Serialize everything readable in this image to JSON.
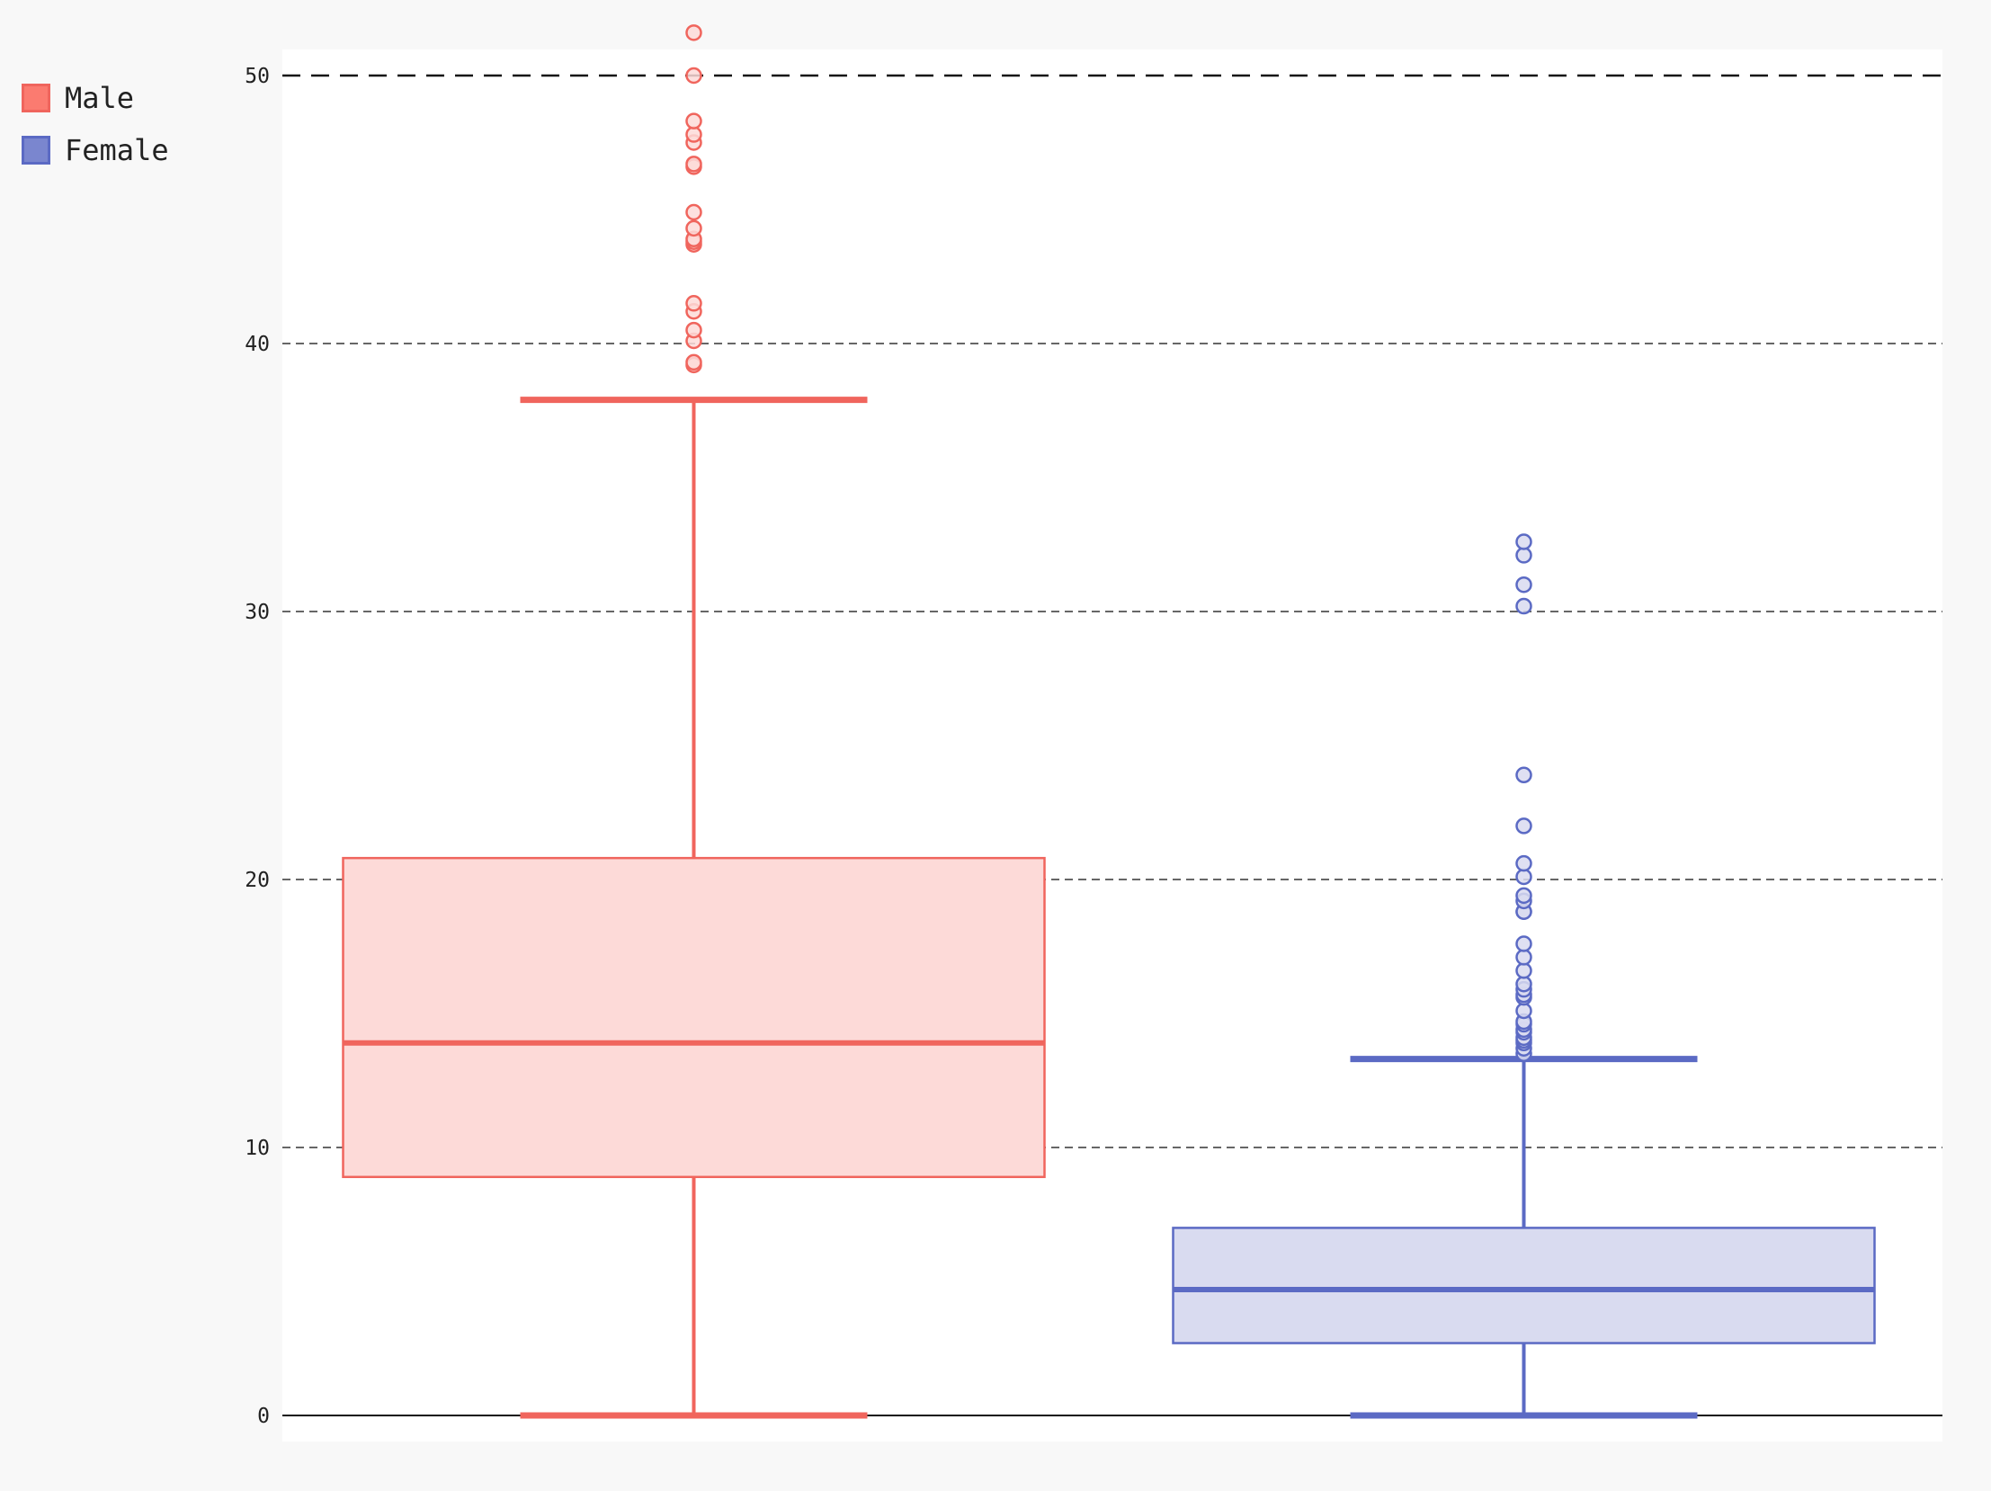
{
  "chart_data": {
    "type": "box",
    "title": "",
    "xlabel": "",
    "ylabel": "",
    "ylim": [
      -1,
      51.5
    ],
    "yticks": [
      0,
      10,
      20,
      30,
      40,
      50
    ],
    "reference_line": 50,
    "grid": true,
    "legend_position": "top-left",
    "series": [
      {
        "name": "Male",
        "color": "#f0655d",
        "fill": "#fddad8",
        "whisker_low": 0,
        "q1": 8.9,
        "median": 13.9,
        "q3": 20.8,
        "whisker_high": 37.9,
        "outliers": [
          39.2,
          39.3,
          40.1,
          40.5,
          41.2,
          41.5,
          43.7,
          43.8,
          43.9,
          44.3,
          44.9,
          46.6,
          46.7,
          47.5,
          47.8,
          48.3,
          50.0,
          51.6
        ]
      },
      {
        "name": "Female",
        "color": "#5b6ac4",
        "fill": "#d9dbf0",
        "whisker_low": 0,
        "q1": 2.7,
        "median": 4.7,
        "q3": 7.0,
        "whisker_high": 13.3,
        "outliers": [
          13.5,
          13.7,
          13.9,
          14.0,
          14.1,
          14.3,
          14.4,
          14.6,
          14.7,
          15.1,
          15.6,
          15.7,
          15.9,
          16.1,
          16.6,
          17.1,
          17.6,
          18.8,
          18.8,
          19.2,
          19.4,
          20.1,
          20.6,
          22.0,
          23.9,
          30.2,
          31.0,
          32.1,
          32.6
        ]
      }
    ]
  }
}
